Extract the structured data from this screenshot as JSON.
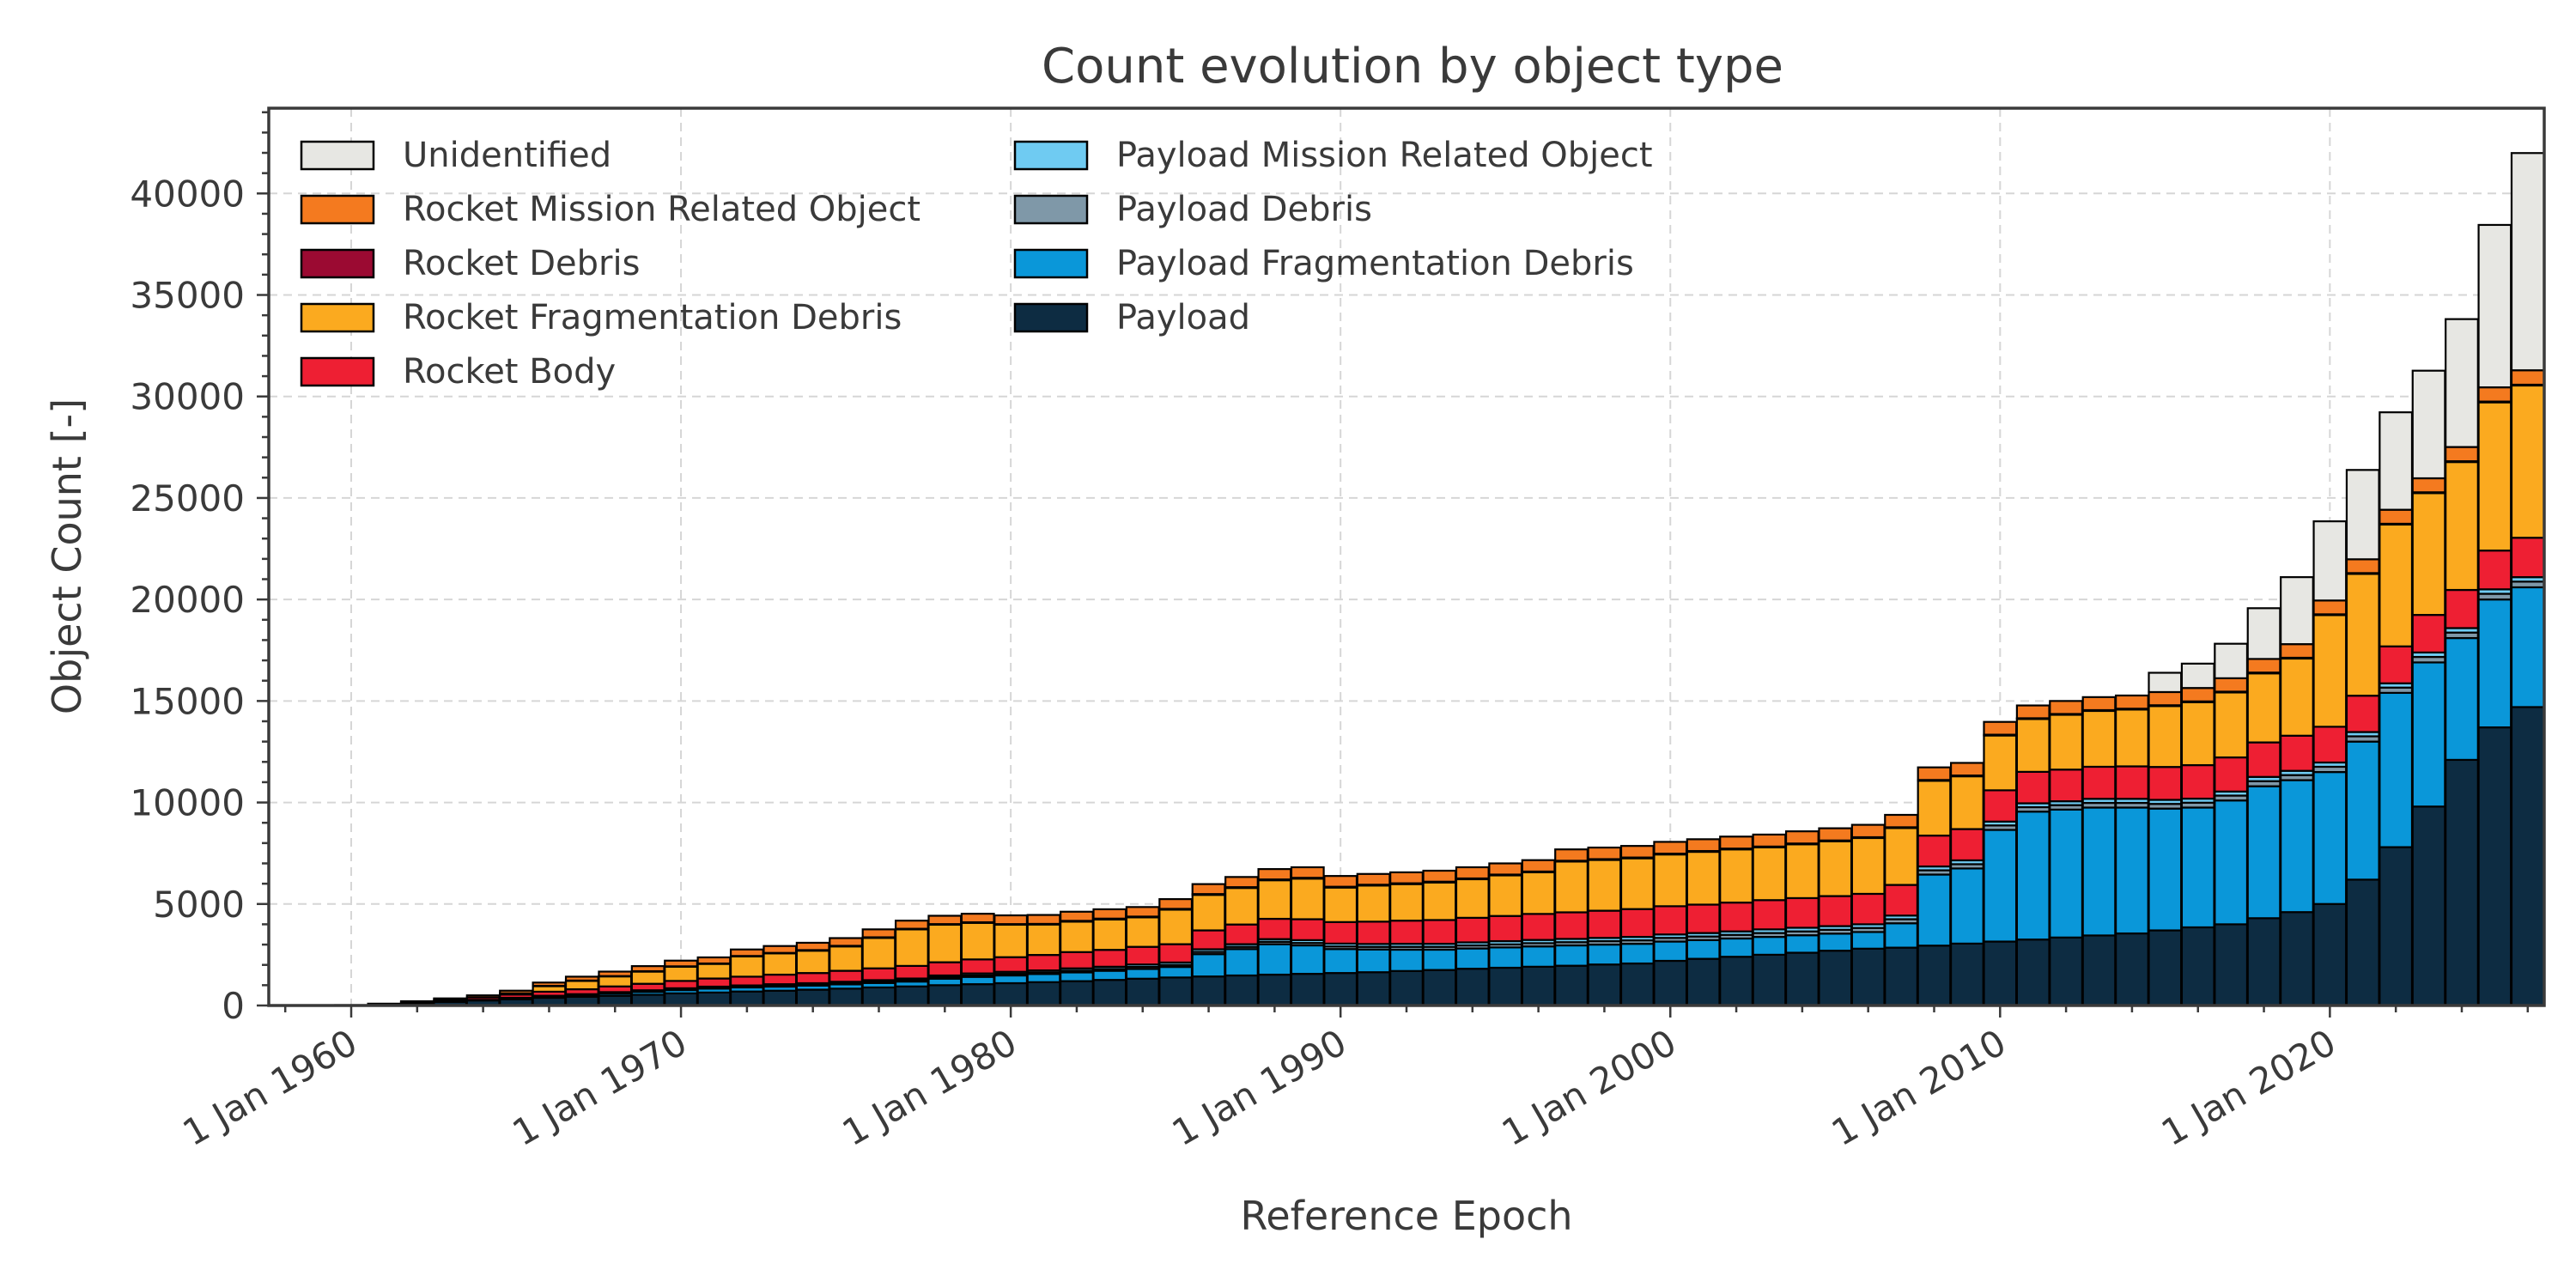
{
  "chart_data": {
    "type": "bar",
    "stacked": true,
    "title": "Count evolution by object type",
    "xlabel": "Reference Epoch",
    "ylabel": "Object Count [-]",
    "x_tick_labels": [
      "1 Jan 1960",
      "1 Jan 1970",
      "1 Jan 1980",
      "1 Jan 1990",
      "1 Jan 2000",
      "1 Jan 2010",
      "1 Jan 2020"
    ],
    "y_tick_labels": [
      "0",
      "5000",
      "10000",
      "15000",
      "20000",
      "25000",
      "30000",
      "35000",
      "40000"
    ],
    "xlim": [
      "1957-07-01",
      "2026-07-01"
    ],
    "ylim": [
      0,
      44200
    ],
    "grid": true,
    "legend_position": "top-left",
    "years": [
      1960,
      1961,
      1962,
      1963,
      1964,
      1965,
      1966,
      1967,
      1968,
      1969,
      1970,
      1971,
      1972,
      1973,
      1974,
      1975,
      1976,
      1977,
      1978,
      1979,
      1980,
      1981,
      1982,
      1983,
      1984,
      1985,
      1986,
      1987,
      1988,
      1989,
      1990,
      1991,
      1992,
      1993,
      1994,
      1995,
      1996,
      1997,
      1998,
      1999,
      2000,
      2001,
      2002,
      2003,
      2004,
      2005,
      2006,
      2007,
      2008,
      2009,
      2010,
      2011,
      2012,
      2013,
      2014,
      2015,
      2016,
      2017,
      2018,
      2019,
      2020,
      2021,
      2022,
      2023,
      2024,
      2025,
      2026
    ],
    "series": [
      {
        "name": "Payload",
        "color": "#0d2c42",
        "values": [
          5,
          40,
          100,
          180,
          250,
          310,
          380,
          430,
          480,
          530,
          600,
          640,
          690,
          730,
          780,
          830,
          890,
          940,
          1000,
          1050,
          1100,
          1150,
          1200,
          1260,
          1320,
          1380,
          1430,
          1480,
          1520,
          1560,
          1600,
          1640,
          1700,
          1750,
          1810,
          1860,
          1910,
          1960,
          2020,
          2070,
          2200,
          2300,
          2400,
          2500,
          2600,
          2700,
          2800,
          2850,
          2950,
          3050,
          3150,
          3250,
          3350,
          3450,
          3550,
          3700,
          3850,
          4000,
          4300,
          4600,
          5000,
          6200,
          7800,
          9800,
          12100,
          13700,
          14700
        ]
      },
      {
        "name": "Payload Fragmentation Debris",
        "color": "#0a97d9",
        "values": [
          0,
          0,
          0,
          0,
          20,
          40,
          60,
          80,
          110,
          140,
          160,
          190,
          200,
          200,
          200,
          210,
          220,
          240,
          320,
          360,
          380,
          400,
          430,
          450,
          480,
          520,
          1100,
          1300,
          1500,
          1400,
          1180,
          1120,
          1050,
          1000,
          1000,
          1000,
          1000,
          1000,
          980,
          970,
          950,
          920,
          900,
          880,
          860,
          840,
          820,
          1200,
          3500,
          3700,
          5500,
          6300,
          6300,
          6300,
          6200,
          6000,
          5900,
          6100,
          6500,
          6500,
          6500,
          6800,
          7600,
          7100,
          6000,
          6300,
          5900
        ]
      },
      {
        "name": "Payload Debris",
        "color": "#7f98a8",
        "values": [
          0,
          0,
          0,
          0,
          0,
          10,
          20,
          20,
          30,
          30,
          40,
          40,
          40,
          50,
          50,
          50,
          60,
          60,
          70,
          70,
          80,
          80,
          90,
          90,
          100,
          100,
          110,
          110,
          120,
          120,
          130,
          130,
          140,
          140,
          150,
          150,
          160,
          160,
          170,
          170,
          180,
          180,
          180,
          190,
          190,
          190,
          200,
          200,
          210,
          210,
          220,
          220,
          220,
          230,
          230,
          230,
          240,
          240,
          250,
          250,
          260,
          260,
          260,
          270,
          270,
          280,
          280
        ]
      },
      {
        "name": "Payload Mission Related Object",
        "color": "#6fcbf2",
        "values": [
          0,
          0,
          0,
          0,
          10,
          20,
          20,
          30,
          40,
          50,
          50,
          60,
          60,
          70,
          70,
          80,
          80,
          90,
          90,
          100,
          100,
          100,
          110,
          110,
          120,
          120,
          130,
          130,
          130,
          140,
          140,
          140,
          150,
          150,
          150,
          160,
          160,
          160,
          160,
          170,
          170,
          170,
          170,
          180,
          180,
          180,
          180,
          180,
          190,
          190,
          190,
          190,
          190,
          200,
          200,
          200,
          200,
          200,
          210,
          210,
          210,
          210,
          210,
          220,
          220,
          220,
          220
        ]
      },
      {
        "name": "Rocket Body",
        "color": "#ee1f33",
        "values": [
          10,
          30,
          60,
          90,
          120,
          160,
          200,
          240,
          280,
          320,
          360,
          400,
          430,
          470,
          500,
          540,
          580,
          620,
          650,
          690,
          720,
          760,
          800,
          830,
          870,
          900,
          930,
          970,
          1000,
          1030,
          1060,
          1100,
          1140,
          1170,
          1210,
          1240,
          1280,
          1310,
          1340,
          1370,
          1390,
          1400,
          1420,
          1440,
          1460,
          1480,
          1500,
          1510,
          1520,
          1540,
          1540,
          1550,
          1560,
          1580,
          1600,
          1620,
          1650,
          1680,
          1700,
          1730,
          1760,
          1790,
          1820,
          1850,
          1880,
          1910,
          1940
        ]
      },
      {
        "name": "Rocket Fragmentation Debris",
        "color": "#fbaa1f",
        "values": [
          0,
          0,
          0,
          0,
          0,
          50,
          280,
          420,
          500,
          600,
          700,
          720,
          1000,
          1050,
          1100,
          1200,
          1500,
          1800,
          1850,
          1800,
          1600,
          1500,
          1500,
          1500,
          1450,
          1700,
          1750,
          1800,
          1900,
          2000,
          1700,
          1780,
          1800,
          1850,
          1900,
          2000,
          2050,
          2500,
          2500,
          2500,
          2550,
          2600,
          2620,
          2600,
          2650,
          2700,
          2750,
          2800,
          2700,
          2600,
          2700,
          2600,
          2700,
          2750,
          2800,
          3000,
          3100,
          3200,
          3400,
          3800,
          5500,
          6000,
          6000,
          6000,
          6300,
          7300,
          7500
        ]
      },
      {
        "name": "Rocket Debris",
        "color": "#9b0a32",
        "values": [
          0,
          0,
          0,
          0,
          0,
          10,
          10,
          10,
          10,
          20,
          20,
          20,
          20,
          20,
          30,
          30,
          30,
          30,
          30,
          30,
          30,
          30,
          40,
          40,
          40,
          40,
          40,
          40,
          40,
          40,
          40,
          40,
          40,
          40,
          40,
          40,
          40,
          40,
          40,
          40,
          40,
          40,
          40,
          40,
          40,
          40,
          40,
          40,
          40,
          40,
          40,
          40,
          40,
          40,
          40,
          40,
          40,
          40,
          40,
          40,
          40,
          40,
          40,
          40,
          40,
          40,
          40
        ]
      },
      {
        "name": "Rocket Mission Related Object",
        "color": "#f47a1f",
        "values": [
          5,
          20,
          50,
          80,
          100,
          130,
          160,
          190,
          220,
          250,
          280,
          300,
          320,
          340,
          360,
          380,
          390,
          400,
          410,
          420,
          430,
          440,
          450,
          460,
          470,
          480,
          490,
          500,
          510,
          520,
          530,
          530,
          540,
          540,
          550,
          550,
          560,
          560,
          570,
          570,
          580,
          580,
          590,
          590,
          600,
          600,
          610,
          610,
          620,
          620,
          630,
          630,
          640,
          640,
          650,
          650,
          660,
          660,
          670,
          670,
          680,
          680,
          690,
          690,
          700,
          700,
          710
        ]
      },
      {
        "name": "Unidentified",
        "color": "#e7e7e3",
        "values": [
          0,
          0,
          0,
          0,
          0,
          0,
          0,
          0,
          0,
          0,
          0,
          0,
          0,
          0,
          0,
          0,
          0,
          0,
          0,
          0,
          0,
          0,
          0,
          0,
          0,
          0,
          0,
          0,
          0,
          0,
          0,
          0,
          0,
          0,
          0,
          0,
          0,
          0,
          0,
          0,
          0,
          0,
          0,
          0,
          0,
          0,
          0,
          0,
          0,
          0,
          0,
          0,
          0,
          0,
          0,
          950,
          1200,
          1700,
          2500,
          3300,
          3900,
          4400,
          4800,
          5300,
          6300,
          8000,
          10700
        ]
      }
    ]
  }
}
